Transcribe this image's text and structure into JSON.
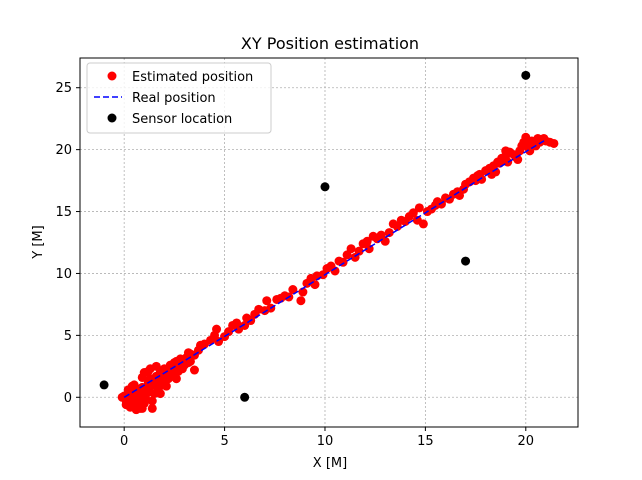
{
  "chart_data": {
    "type": "scatter",
    "title": "XY Position estimation",
    "xlabel": "X [M]",
    "ylabel": "Y [M]",
    "xlim": [
      -2.2,
      22.6
    ],
    "ylim": [
      -2.4,
      27.4
    ],
    "xticks": [
      0,
      5,
      10,
      15,
      20
    ],
    "yticks": [
      0,
      5,
      10,
      15,
      20,
      25
    ],
    "grid": true,
    "legend_position": "top-left",
    "series": [
      {
        "name": "Estimated position",
        "kind": "points",
        "color": "#ff0000",
        "points": [
          [
            0.0,
            0.1
          ],
          [
            0.1,
            -0.3
          ],
          [
            0.2,
            0.2
          ],
          [
            0.1,
            -0.6
          ],
          [
            0.3,
            -0.1
          ],
          [
            0.4,
            0.4
          ],
          [
            0.3,
            -0.8
          ],
          [
            0.5,
            -0.4
          ],
          [
            0.6,
            0.0
          ],
          [
            0.5,
            0.6
          ],
          [
            0.7,
            -0.7
          ],
          [
            0.8,
            -0.3
          ],
          [
            0.7,
            0.3
          ],
          [
            0.9,
            0.8
          ],
          [
            0.9,
            -0.9
          ],
          [
            1.0,
            -0.5
          ],
          [
            1.0,
            0.1
          ],
          [
            1.1,
            0.6
          ],
          [
            1.2,
            1.2
          ],
          [
            0.6,
            -1.0
          ],
          [
            0.2,
            -0.5
          ],
          [
            -0.1,
            0.0
          ],
          [
            0.4,
            0.9
          ],
          [
            0.8,
            -0.9
          ],
          [
            1.1,
            -0.2
          ],
          [
            1.2,
            0.4
          ],
          [
            1.3,
            0.9
          ],
          [
            1.3,
            1.5
          ],
          [
            1.4,
            -0.3
          ],
          [
            1.5,
            0.3
          ],
          [
            1.5,
            1.0
          ],
          [
            1.6,
            1.7
          ],
          [
            1.7,
            0.6
          ],
          [
            1.7,
            1.2
          ],
          [
            1.8,
            2.0
          ],
          [
            1.8,
            0.3
          ],
          [
            1.9,
            1.0
          ],
          [
            2.0,
            1.6
          ],
          [
            2.0,
            2.3
          ],
          [
            2.1,
            0.9
          ],
          [
            2.2,
            1.5
          ],
          [
            2.2,
            2.1
          ],
          [
            2.3,
            2.6
          ],
          [
            2.4,
            1.7
          ],
          [
            2.5,
            2.2
          ],
          [
            2.5,
            2.8
          ],
          [
            2.6,
            1.5
          ],
          [
            2.7,
            2.1
          ],
          [
            2.7,
            2.7
          ],
          [
            2.8,
            3.1
          ],
          [
            2.9,
            2.3
          ],
          [
            3.0,
            2.6
          ],
          [
            3.1,
            3.2
          ],
          [
            3.2,
            3.6
          ],
          [
            3.2,
            2.8
          ],
          [
            3.3,
            2.9
          ],
          [
            3.5,
            3.4
          ],
          [
            3.7,
            3.8
          ],
          [
            3.8,
            4.2
          ],
          [
            3.5,
            2.2
          ],
          [
            1.0,
            2.0
          ],
          [
            1.3,
            2.3
          ],
          [
            1.6,
            2.5
          ],
          [
            1.4,
            -0.9
          ],
          [
            0.5,
            1.0
          ],
          [
            0.2,
            0.6
          ],
          [
            0.9,
            1.6
          ],
          [
            1.2,
            2.1
          ],
          [
            0.6,
            -0.2
          ],
          [
            0.8,
            0.2
          ],
          [
            2.6,
            2.9
          ],
          [
            3.3,
            3.5
          ],
          [
            4.0,
            4.3
          ],
          [
            4.3,
            4.6
          ],
          [
            4.5,
            5.0
          ],
          [
            4.7,
            4.5
          ],
          [
            4.6,
            5.5
          ],
          [
            5.0,
            4.9
          ],
          [
            5.2,
            5.3
          ],
          [
            5.4,
            5.8
          ],
          [
            5.6,
            6.0
          ],
          [
            5.7,
            5.5
          ],
          [
            6.0,
            5.8
          ],
          [
            6.1,
            6.4
          ],
          [
            6.3,
            6.2
          ],
          [
            6.5,
            6.7
          ],
          [
            6.7,
            7.1
          ],
          [
            7.0,
            7.0
          ],
          [
            7.1,
            7.8
          ],
          [
            7.3,
            7.2
          ],
          [
            7.6,
            7.9
          ],
          [
            7.8,
            8.0
          ],
          [
            8.0,
            8.2
          ],
          [
            8.2,
            8.1
          ],
          [
            8.4,
            8.7
          ],
          [
            8.8,
            7.8
          ],
          [
            8.9,
            8.5
          ],
          [
            9.1,
            9.2
          ],
          [
            9.3,
            9.6
          ],
          [
            9.5,
            9.1
          ],
          [
            9.6,
            9.8
          ],
          [
            9.9,
            9.9
          ],
          [
            10.1,
            10.4
          ],
          [
            10.3,
            10.6
          ],
          [
            10.5,
            10.2
          ],
          [
            10.7,
            11.0
          ],
          [
            10.9,
            10.9
          ],
          [
            11.1,
            11.5
          ],
          [
            11.3,
            12.0
          ],
          [
            11.5,
            11.3
          ],
          [
            11.7,
            11.8
          ],
          [
            11.9,
            12.4
          ],
          [
            12.1,
            12.6
          ],
          [
            12.2,
            12.0
          ],
          [
            12.4,
            13.0
          ],
          [
            12.6,
            12.8
          ],
          [
            12.8,
            13.1
          ],
          [
            13.0,
            12.6
          ],
          [
            13.2,
            13.3
          ],
          [
            13.4,
            14.0
          ],
          [
            13.6,
            13.8
          ],
          [
            13.8,
            14.3
          ],
          [
            14.0,
            14.2
          ],
          [
            14.2,
            14.6
          ],
          [
            14.4,
            14.9
          ],
          [
            14.6,
            14.3
          ],
          [
            14.7,
            15.3
          ],
          [
            14.9,
            14.0
          ],
          [
            15.1,
            15.0
          ],
          [
            15.3,
            15.2
          ],
          [
            15.5,
            15.5
          ],
          [
            15.6,
            15.8
          ],
          [
            15.8,
            15.6
          ],
          [
            16.0,
            16.1
          ],
          [
            16.2,
            16.0
          ],
          [
            16.4,
            16.4
          ],
          [
            16.6,
            16.6
          ],
          [
            16.7,
            16.3
          ],
          [
            16.9,
            16.8
          ],
          [
            17.0,
            17.2
          ],
          [
            17.2,
            17.4
          ],
          [
            17.4,
            17.7
          ],
          [
            17.5,
            17.5
          ],
          [
            17.7,
            18.0
          ],
          [
            17.8,
            17.6
          ],
          [
            18.0,
            18.3
          ],
          [
            18.2,
            18.5
          ],
          [
            18.4,
            18.7
          ],
          [
            18.5,
            18.2
          ],
          [
            18.7,
            18.9
          ],
          [
            18.8,
            19.3
          ],
          [
            19.0,
            19.5
          ],
          [
            19.1,
            19.0
          ],
          [
            19.2,
            19.8
          ],
          [
            19.4,
            19.6
          ],
          [
            19.5,
            19.4
          ],
          [
            19.7,
            19.9
          ],
          [
            19.8,
            20.3
          ],
          [
            19.9,
            20.6
          ],
          [
            20.0,
            21.0
          ],
          [
            20.1,
            20.2
          ],
          [
            20.3,
            20.7
          ],
          [
            20.4,
            20.5
          ],
          [
            20.6,
            20.9
          ],
          [
            20.8,
            20.8
          ],
          [
            21.0,
            20.7
          ],
          [
            21.2,
            20.6
          ],
          [
            21.4,
            20.5
          ],
          [
            20.2,
            19.9
          ],
          [
            19.6,
            19.2
          ],
          [
            19.0,
            19.9
          ],
          [
            18.6,
            19.0
          ],
          [
            18.3,
            18.0
          ],
          [
            17.2,
            17.4
          ],
          [
            17.6,
            17.9
          ],
          [
            20.5,
            20.3
          ],
          [
            20.7,
            20.6
          ],
          [
            20.9,
            20.9
          ]
        ]
      },
      {
        "name": "Real position",
        "kind": "dashed-line",
        "color": "#0000ff",
        "points": [
          [
            0,
            0
          ],
          [
            1,
            0.98
          ],
          [
            3,
            2.95
          ],
          [
            6,
            5.9
          ],
          [
            9,
            8.9
          ],
          [
            12,
            11.9
          ],
          [
            15,
            14.9
          ],
          [
            18,
            17.9
          ],
          [
            21,
            20.8
          ]
        ]
      },
      {
        "name": "Sensor location",
        "kind": "points",
        "color": "#000000",
        "points": [
          [
            -1,
            1
          ],
          [
            6,
            0
          ],
          [
            10,
            17
          ],
          [
            17,
            11
          ],
          [
            20,
            26
          ]
        ]
      }
    ]
  }
}
